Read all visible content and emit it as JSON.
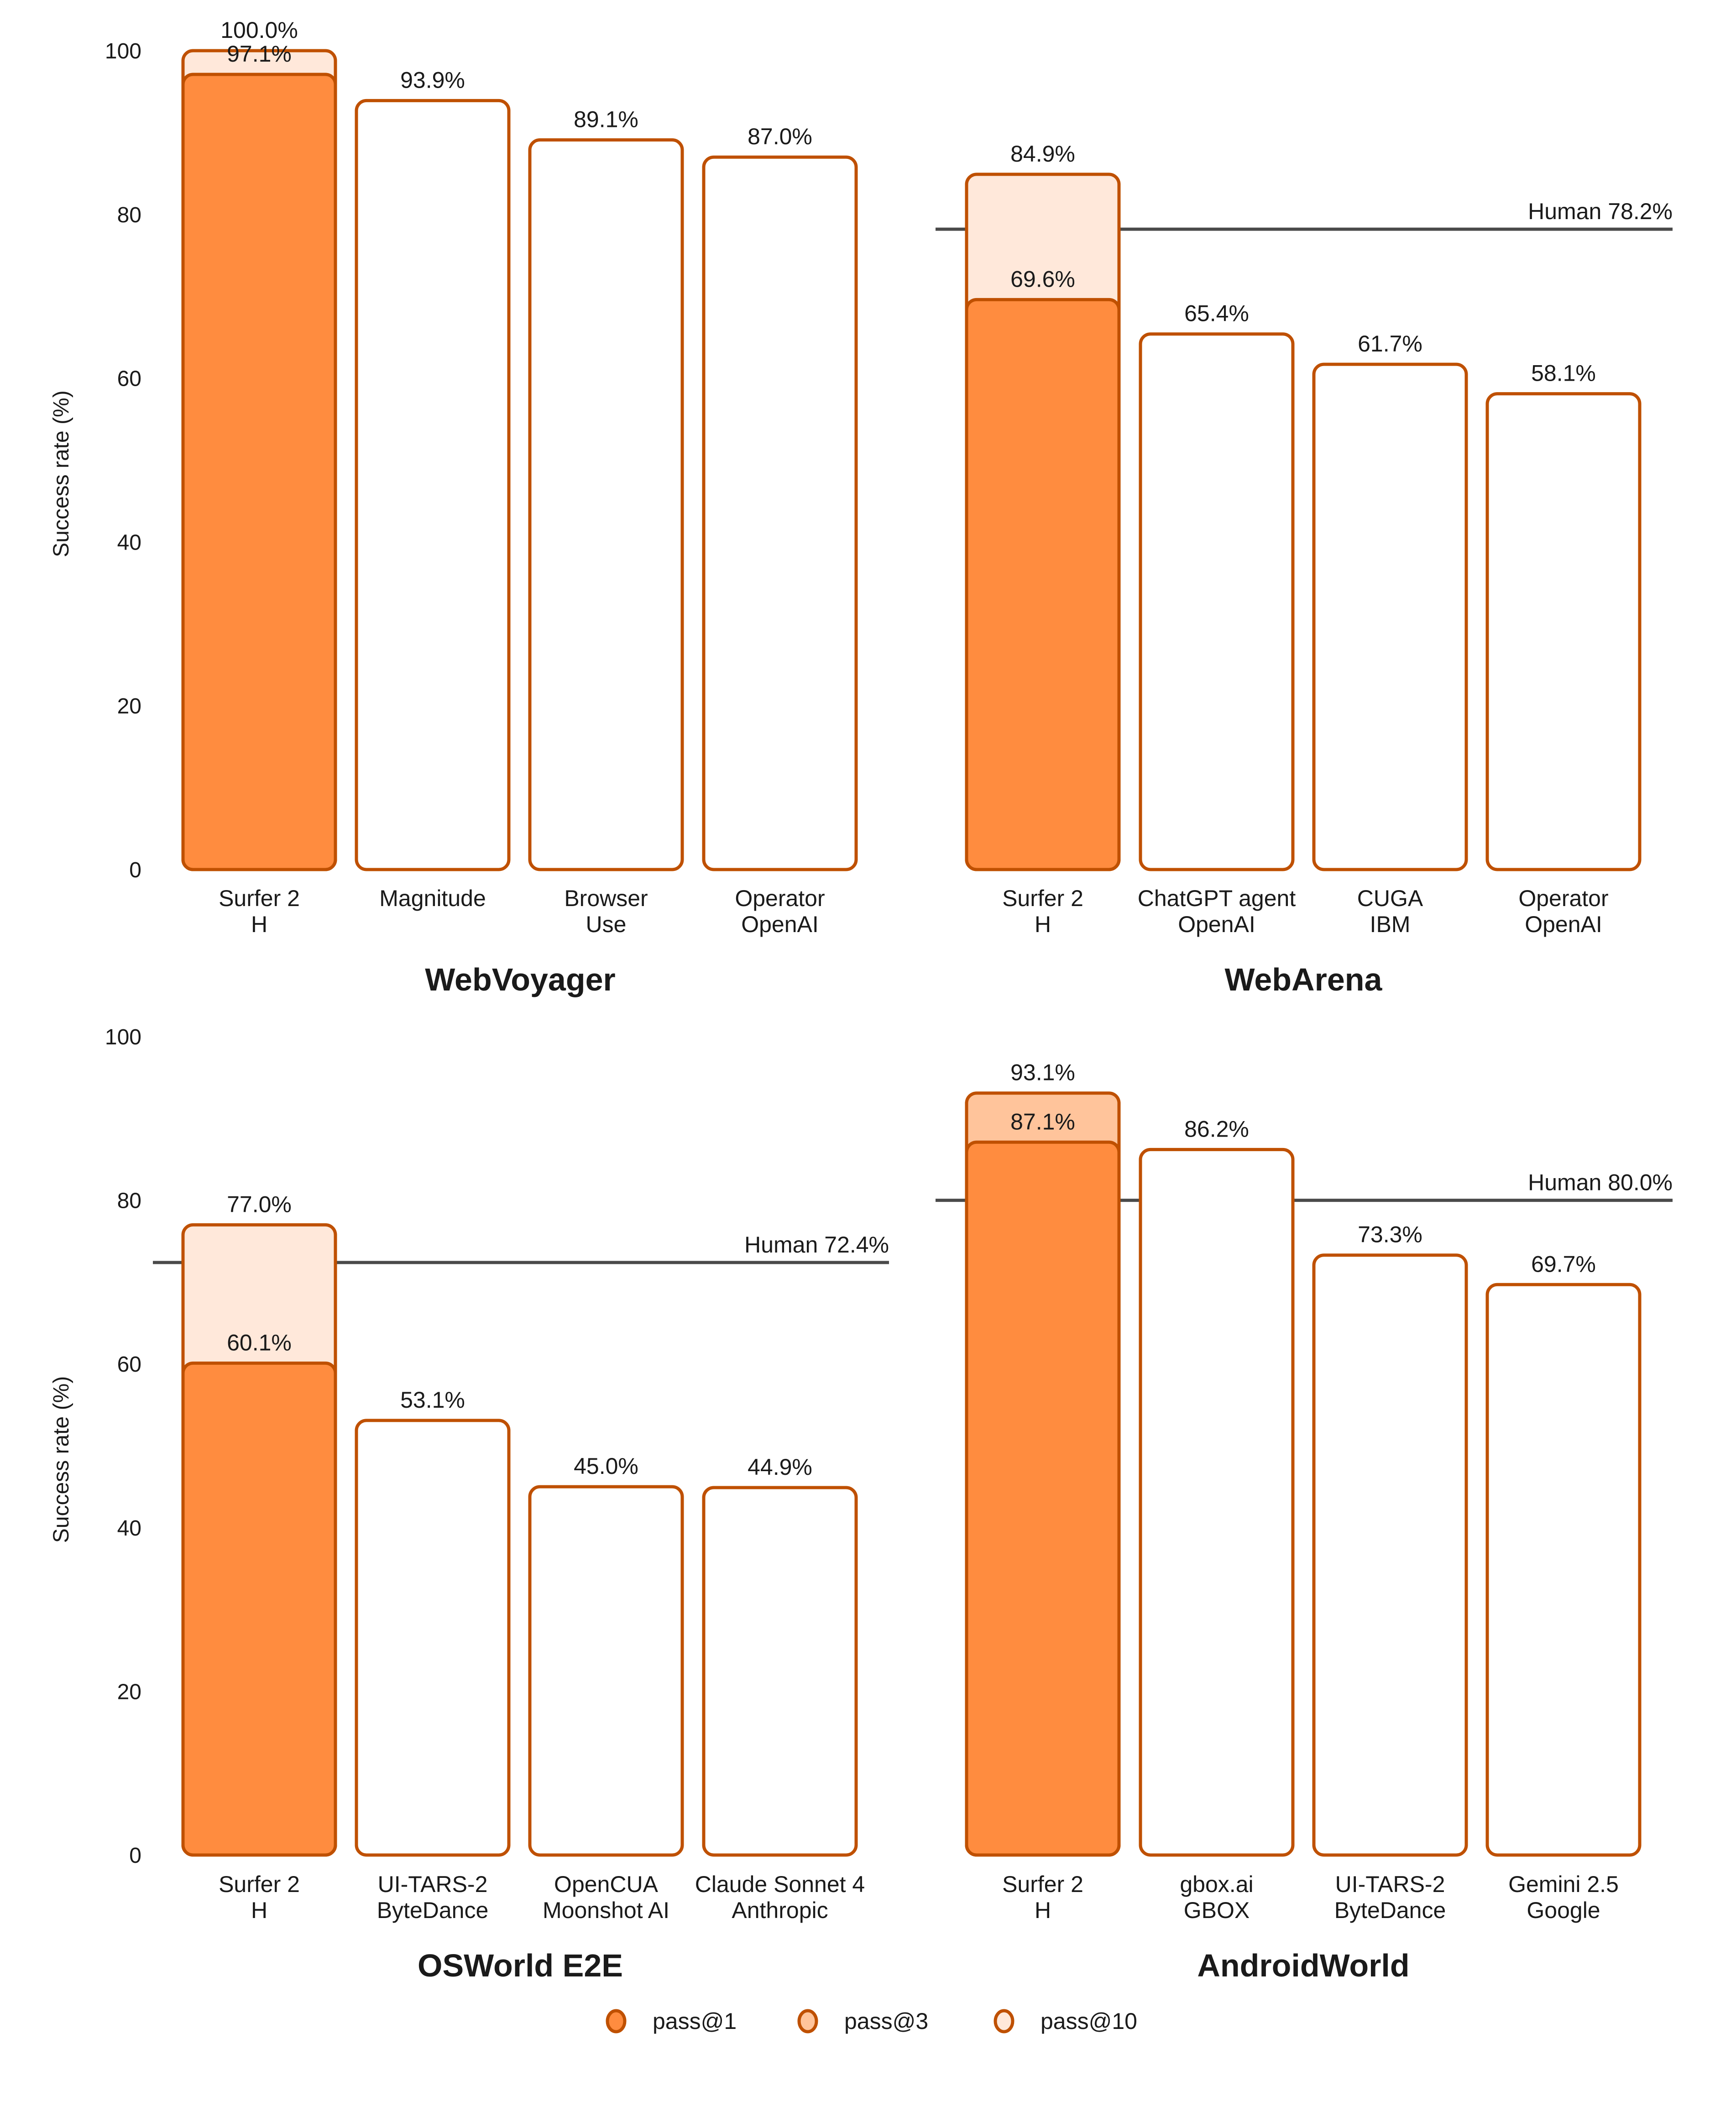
{
  "colors": {
    "pass1": "#FF8C3F",
    "pass3": "#FFC49B",
    "pass10": "#FFE8DA",
    "stroke": "#BF5000",
    "baseline_fill": "#FFFFFF",
    "human_line": "#4a4a4a"
  },
  "legend": {
    "items": [
      {
        "label": "pass@1",
        "key": "pass1"
      },
      {
        "label": "pass@3",
        "key": "pass3"
      },
      {
        "label": "pass@10",
        "key": "pass10"
      }
    ]
  },
  "chart_data": [
    {
      "type": "bar",
      "title": "WebVoyager",
      "ylabel": "Success rate (%)",
      "ylim": [
        0,
        100
      ],
      "yticks": [
        0,
        20,
        40,
        60,
        80,
        100
      ],
      "grid": false,
      "categories": [
        {
          "line1": "Surfer 2",
          "line2": "H"
        },
        {
          "line1": "Magnitude",
          "line2": ""
        },
        {
          "line1": "Browser",
          "line2": "Use"
        },
        {
          "line1": "Operator",
          "line2": "OpenAI"
        }
      ],
      "bars": [
        {
          "segments": [
            {
              "value": 97.1,
              "kind": "pass1",
              "label": "97.1%"
            },
            {
              "value": 100.0,
              "kind": "pass10",
              "label": "100.0%"
            }
          ]
        },
        {
          "segments": [
            {
              "value": 93.9,
              "kind": "baseline",
              "label": "93.9%"
            }
          ]
        },
        {
          "segments": [
            {
              "value": 89.1,
              "kind": "baseline",
              "label": "89.1%"
            }
          ]
        },
        {
          "segments": [
            {
              "value": 87.0,
              "kind": "baseline",
              "label": "87.0%"
            }
          ]
        }
      ],
      "human": null
    },
    {
      "type": "bar",
      "title": "WebArena",
      "ylabel": "",
      "ylim": [
        0,
        100
      ],
      "yticks": [],
      "grid": false,
      "categories": [
        {
          "line1": "Surfer 2",
          "line2": "H"
        },
        {
          "line1": "ChatGPT agent",
          "line2": "OpenAI"
        },
        {
          "line1": "CUGA",
          "line2": "IBM"
        },
        {
          "line1": "Operator",
          "line2": "OpenAI"
        }
      ],
      "bars": [
        {
          "segments": [
            {
              "value": 69.6,
              "kind": "pass1",
              "label": "69.6%"
            },
            {
              "value": 84.9,
              "kind": "pass10",
              "label": "84.9%"
            }
          ]
        },
        {
          "segments": [
            {
              "value": 65.4,
              "kind": "baseline",
              "label": "65.4%"
            }
          ]
        },
        {
          "segments": [
            {
              "value": 61.7,
              "kind": "baseline",
              "label": "61.7%"
            }
          ]
        },
        {
          "segments": [
            {
              "value": 58.1,
              "kind": "baseline",
              "label": "58.1%"
            }
          ]
        }
      ],
      "human": {
        "value": 78.2,
        "label": "Human 78.2%"
      }
    },
    {
      "type": "bar",
      "title": "OSWorld E2E",
      "ylabel": "Success rate (%)",
      "ylim": [
        0,
        100
      ],
      "yticks": [
        0,
        20,
        40,
        60,
        80,
        100
      ],
      "grid": false,
      "categories": [
        {
          "line1": "Surfer 2",
          "line2": "H"
        },
        {
          "line1": "UI-TARS-2",
          "line2": "ByteDance"
        },
        {
          "line1": "OpenCUA",
          "line2": "Moonshot AI"
        },
        {
          "line1": "Claude Sonnet 4",
          "line2": "Anthropic"
        }
      ],
      "bars": [
        {
          "segments": [
            {
              "value": 60.1,
              "kind": "pass1",
              "label": "60.1%"
            },
            {
              "value": 77.0,
              "kind": "pass10",
              "label": "77.0%"
            }
          ]
        },
        {
          "segments": [
            {
              "value": 53.1,
              "kind": "baseline",
              "label": "53.1%"
            }
          ]
        },
        {
          "segments": [
            {
              "value": 45.0,
              "kind": "baseline",
              "label": "45.0%"
            }
          ]
        },
        {
          "segments": [
            {
              "value": 44.9,
              "kind": "baseline",
              "label": "44.9%"
            }
          ]
        }
      ],
      "human": {
        "value": 72.4,
        "label": "Human 72.4%"
      }
    },
    {
      "type": "bar",
      "title": "AndroidWorld",
      "ylabel": "",
      "ylim": [
        0,
        100
      ],
      "yticks": [],
      "grid": false,
      "categories": [
        {
          "line1": "Surfer 2",
          "line2": "H"
        },
        {
          "line1": "gbox.ai",
          "line2": "GBOX"
        },
        {
          "line1": "UI-TARS-2",
          "line2": "ByteDance"
        },
        {
          "line1": "Gemini 2.5",
          "line2": "Google"
        }
      ],
      "bars": [
        {
          "segments": [
            {
              "value": 87.1,
              "kind": "pass1",
              "label": "87.1%"
            },
            {
              "value": 93.1,
              "kind": "pass3",
              "label": "93.1%"
            }
          ]
        },
        {
          "segments": [
            {
              "value": 86.2,
              "kind": "baseline",
              "label": "86.2%"
            }
          ]
        },
        {
          "segments": [
            {
              "value": 73.3,
              "kind": "baseline",
              "label": "73.3%"
            }
          ]
        },
        {
          "segments": [
            {
              "value": 69.7,
              "kind": "baseline",
              "label": "69.7%"
            }
          ]
        }
      ],
      "human": {
        "value": 80.0,
        "label": "Human 80.0%"
      }
    }
  ]
}
